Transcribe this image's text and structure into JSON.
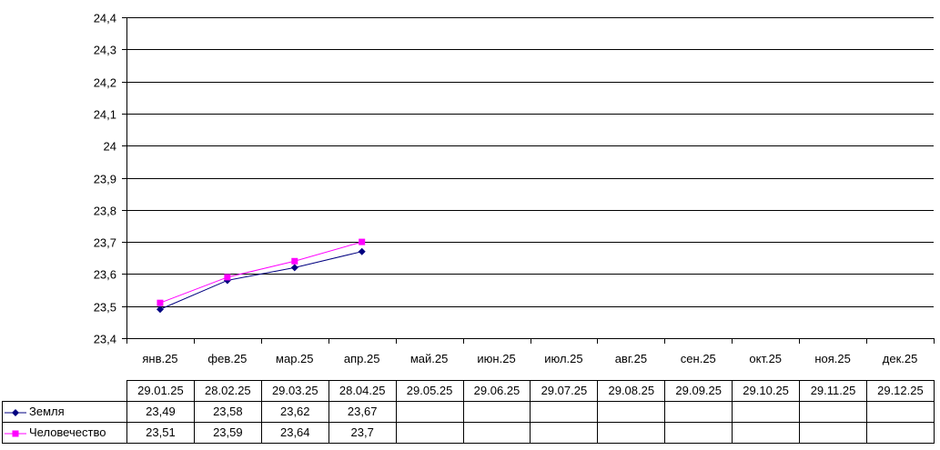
{
  "chart_data": {
    "type": "line",
    "ylim": [
      23.4,
      24.4
    ],
    "yticks": [
      "23,4",
      "23,5",
      "23,6",
      "23,7",
      "23,8",
      "23,9",
      "24",
      "24,1",
      "24,2",
      "24,3",
      "24,4"
    ],
    "categories": [
      "янв.25",
      "фев.25",
      "мар.25",
      "апр.25",
      "май.25",
      "июн.25",
      "июл.25",
      "авг.25",
      "сен.25",
      "окт.25",
      "ноя.25",
      "дек.25"
    ],
    "dates": [
      "29.01.25",
      "28.02.25",
      "29.03.25",
      "28.04.25",
      "29.05.25",
      "29.06.25",
      "29.07.25",
      "29.08.25",
      "29.09.25",
      "29.10.25",
      "29.11.25",
      "29.12.25"
    ],
    "grid": true,
    "legend": "data-table",
    "series": [
      {
        "name": "Земля",
        "color": "#000080",
        "marker": "diamond",
        "values": [
          23.49,
          23.58,
          23.62,
          23.67,
          null,
          null,
          null,
          null,
          null,
          null,
          null,
          null
        ],
        "labels": [
          "23,49",
          "23,58",
          "23,62",
          "23,67",
          "",
          "",
          "",
          "",
          "",
          "",
          "",
          ""
        ]
      },
      {
        "name": "Человечество",
        "color": "#ff00ff",
        "marker": "square",
        "values": [
          23.51,
          23.59,
          23.64,
          23.7,
          null,
          null,
          null,
          null,
          null,
          null,
          null,
          null
        ],
        "labels": [
          "23,51",
          "23,59",
          "23,64",
          "23,7",
          "",
          "",
          "",
          "",
          "",
          "",
          "",
          ""
        ]
      }
    ]
  }
}
